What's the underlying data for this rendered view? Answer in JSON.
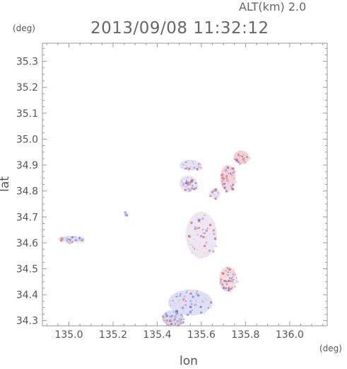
{
  "header": {
    "altitude_label": "ALT(km) 2.0",
    "timestamp": "2013/09/08 11:32:12"
  },
  "axes": {
    "lat_unit": "(deg)",
    "lon_unit": "(deg)",
    "lat_title": "lat",
    "lon_title": "lon",
    "lon_range": [
      134.88,
      136.17
    ],
    "lat_range": [
      34.28,
      35.37
    ],
    "lon_ticks": [
      135.0,
      135.2,
      135.4,
      135.6,
      135.8,
      136.0
    ],
    "lon_tick_labels": [
      "135.0",
      "135.2",
      "135.4",
      "135.6",
      "135.8",
      "136.0"
    ],
    "lat_ticks": [
      34.3,
      34.4,
      34.5,
      34.6,
      34.7,
      34.8,
      34.9,
      35.0,
      35.1,
      35.2,
      35.3
    ],
    "lat_tick_labels": [
      "34.3",
      "34.4",
      "34.5",
      "34.6",
      "34.7",
      "34.8",
      "34.9",
      "35.0",
      "35.1",
      "35.2",
      "35.3"
    ]
  },
  "colors": {
    "axis": "#999999",
    "approaching_light": "#dcdff8",
    "approaching_strong": "#6c74e0",
    "receding_light": "#f8d6d6",
    "receding_strong": "#e06060"
  },
  "echo_regions": [
    {
      "name": "west-echo",
      "lon": 135.01,
      "lat": 34.615,
      "rx_deg": 0.06,
      "ry_deg": 0.012,
      "color": "#d6daf6"
    },
    {
      "name": "west-echo-core",
      "lon": 135.0,
      "lat": 34.61,
      "rx_deg": 0.012,
      "ry_deg": 0.006,
      "color": "#7d84e0"
    },
    {
      "name": "small-echo-1",
      "lon": 135.255,
      "lat": 34.715,
      "rx_deg": 0.008,
      "ry_deg": 0.008,
      "color": "#dde0f7"
    },
    {
      "name": "north-echo",
      "lon": 135.55,
      "lat": 34.9,
      "rx_deg": 0.05,
      "ry_deg": 0.02,
      "color": "#dfe2f8"
    },
    {
      "name": "north-mid-echo",
      "lon": 135.54,
      "lat": 34.83,
      "rx_deg": 0.04,
      "ry_deg": 0.03,
      "color": "#e4e6f8"
    },
    {
      "name": "northeast-echo",
      "lon": 135.78,
      "lat": 34.93,
      "rx_deg": 0.035,
      "ry_deg": 0.025,
      "color": "#f4c8ca"
    },
    {
      "name": "northeast-echo-2",
      "lon": 135.72,
      "lat": 34.85,
      "rx_deg": 0.035,
      "ry_deg": 0.05,
      "color": "#f6cfd0"
    },
    {
      "name": "east-mid-echo",
      "lon": 135.66,
      "lat": 34.79,
      "rx_deg": 0.025,
      "ry_deg": 0.02,
      "color": "#e9e2ee"
    },
    {
      "name": "central-echo",
      "lon": 135.6,
      "lat": 34.63,
      "rx_deg": 0.07,
      "ry_deg": 0.09,
      "color": "#ece3ee"
    },
    {
      "name": "southeast-echo",
      "lon": 135.72,
      "lat": 34.46,
      "rx_deg": 0.04,
      "ry_deg": 0.05,
      "color": "#f5dcdc"
    },
    {
      "name": "south-echo",
      "lon": 135.55,
      "lat": 34.37,
      "rx_deg": 0.1,
      "ry_deg": 0.05,
      "color": "#d9dcf6"
    },
    {
      "name": "south-echo-2",
      "lon": 135.47,
      "lat": 34.31,
      "rx_deg": 0.05,
      "ry_deg": 0.03,
      "color": "#d3d7f4"
    }
  ]
}
